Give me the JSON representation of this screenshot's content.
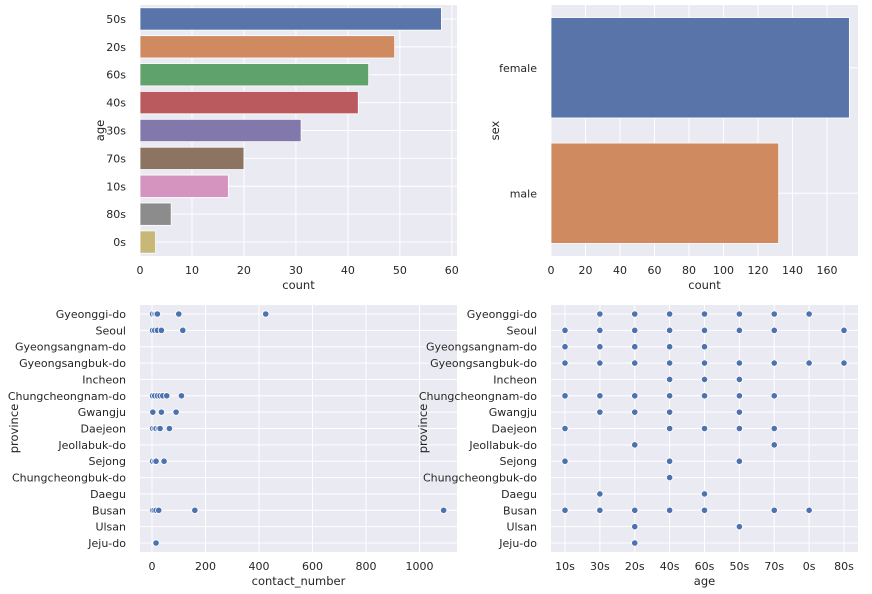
{
  "chart_data": [
    {
      "type": "bar",
      "orientation": "horizontal",
      "categories": [
        "50s",
        "20s",
        "60s",
        "40s",
        "30s",
        "70s",
        "10s",
        "80s",
        "0s"
      ],
      "values": [
        58,
        49,
        44,
        42,
        31,
        20,
        17,
        6,
        3
      ],
      "xlabel": "count",
      "ylabel": "age",
      "xlim": [
        0,
        61
      ],
      "xticks": [
        "0",
        "10",
        "20",
        "30",
        "40",
        "50",
        "60"
      ],
      "colors": [
        "#5874a8",
        "#d08a60",
        "#5fa26c",
        "#bb5a5e",
        "#8278ac",
        "#8c7362",
        "#d593c0",
        "#8c8c8c",
        "#c8b878"
      ],
      "grid": true
    },
    {
      "type": "bar",
      "orientation": "horizontal",
      "categories": [
        "female",
        "male"
      ],
      "values": [
        173,
        132
      ],
      "xlabel": "count",
      "ylabel": "sex",
      "xlim": [
        0,
        178
      ],
      "xticks": [
        "0",
        "20",
        "40",
        "60",
        "80",
        "100",
        "120",
        "140",
        "160"
      ],
      "colors": [
        "#5874a8",
        "#d08a60"
      ],
      "grid": true
    },
    {
      "type": "scatter",
      "categories": [
        "Gyeonggi-do",
        "Seoul",
        "Gyeongsangnam-do",
        "Gyeongsangbuk-do",
        "Incheon",
        "Chungcheongnam-do",
        "Gwangju",
        "Daejeon",
        "Jeollabuk-do",
        "Sejong",
        "Chungcheongbuk-do",
        "Daegu",
        "Busan",
        "Ulsan",
        "Jeju-do"
      ],
      "points": [
        {
          "province": "Gyeonggi-do",
          "x": [
            2,
            10,
            15,
            20,
            100,
            425
          ]
        },
        {
          "province": "Seoul",
          "x": [
            2,
            10,
            20,
            35,
            115
          ]
        },
        {
          "province": "Chungcheongnam-do",
          "x": [
            2,
            10,
            20,
            30,
            40,
            55,
            110
          ]
        },
        {
          "province": "Gwangju",
          "x": [
            3,
            35,
            90
          ]
        },
        {
          "province": "Daejeon",
          "x": [
            2,
            10,
            15,
            25,
            30,
            65
          ]
        },
        {
          "province": "Sejong",
          "x": [
            2,
            10,
            15,
            45
          ]
        },
        {
          "province": "Busan",
          "x": [
            2,
            8,
            15,
            25,
            160,
            1090
          ]
        },
        {
          "province": "Jeju-do",
          "x": [
            15
          ]
        }
      ],
      "xlabel": "contact_number",
      "ylabel": "province",
      "xlim": [
        -45,
        1140
      ],
      "xticks": [
        "0",
        "200",
        "400",
        "600",
        "800",
        "1000"
      ],
      "color": "#4c72b0",
      "grid": true
    },
    {
      "type": "scatter",
      "categories": [
        "Gyeonggi-do",
        "Seoul",
        "Gyeongsangnam-do",
        "Gyeongsangbuk-do",
        "Incheon",
        "Chungcheongnam-do",
        "Gwangju",
        "Daejeon",
        "Jeollabuk-do",
        "Sejong",
        "Chungcheongbuk-do",
        "Daegu",
        "Busan",
        "Ulsan",
        "Jeju-do"
      ],
      "x_categories": [
        "10s",
        "30s",
        "20s",
        "40s",
        "60s",
        "50s",
        "70s",
        "0s",
        "80s"
      ],
      "points": [
        {
          "province": "Gyeonggi-do",
          "x": [
            "30s",
            "20s",
            "40s",
            "60s",
            "50s",
            "70s",
            "0s"
          ]
        },
        {
          "province": "Seoul",
          "x": [
            "10s",
            "30s",
            "20s",
            "40s",
            "60s",
            "50s",
            "70s",
            "80s"
          ]
        },
        {
          "province": "Gyeongsangnam-do",
          "x": [
            "10s",
            "30s",
            "20s",
            "40s",
            "60s"
          ]
        },
        {
          "province": "Gyeongsangbuk-do",
          "x": [
            "10s",
            "30s",
            "20s",
            "40s",
            "60s",
            "50s",
            "70s",
            "0s",
            "80s"
          ]
        },
        {
          "province": "Incheon",
          "x": [
            "40s",
            "60s",
            "50s"
          ]
        },
        {
          "province": "Chungcheongnam-do",
          "x": [
            "10s",
            "30s",
            "20s",
            "40s",
            "60s",
            "50s",
            "70s"
          ]
        },
        {
          "province": "Gwangju",
          "x": [
            "30s",
            "20s",
            "40s",
            "50s"
          ]
        },
        {
          "province": "Daejeon",
          "x": [
            "10s",
            "40s",
            "60s",
            "50s",
            "70s"
          ]
        },
        {
          "province": "Jeollabuk-do",
          "x": [
            "20s",
            "70s"
          ]
        },
        {
          "province": "Sejong",
          "x": [
            "10s",
            "40s",
            "50s"
          ]
        },
        {
          "province": "Chungcheongbuk-do",
          "x": [
            "40s"
          ]
        },
        {
          "province": "Daegu",
          "x": [
            "30s",
            "60s"
          ]
        },
        {
          "province": "Busan",
          "x": [
            "10s",
            "30s",
            "20s",
            "40s",
            "60s",
            "70s",
            "0s"
          ]
        },
        {
          "province": "Ulsan",
          "x": [
            "20s",
            "50s"
          ]
        },
        {
          "province": "Jeju-do",
          "x": [
            "20s"
          ]
        }
      ],
      "xlabel": "age",
      "ylabel": "province",
      "color": "#4c72b0",
      "grid": true
    }
  ]
}
